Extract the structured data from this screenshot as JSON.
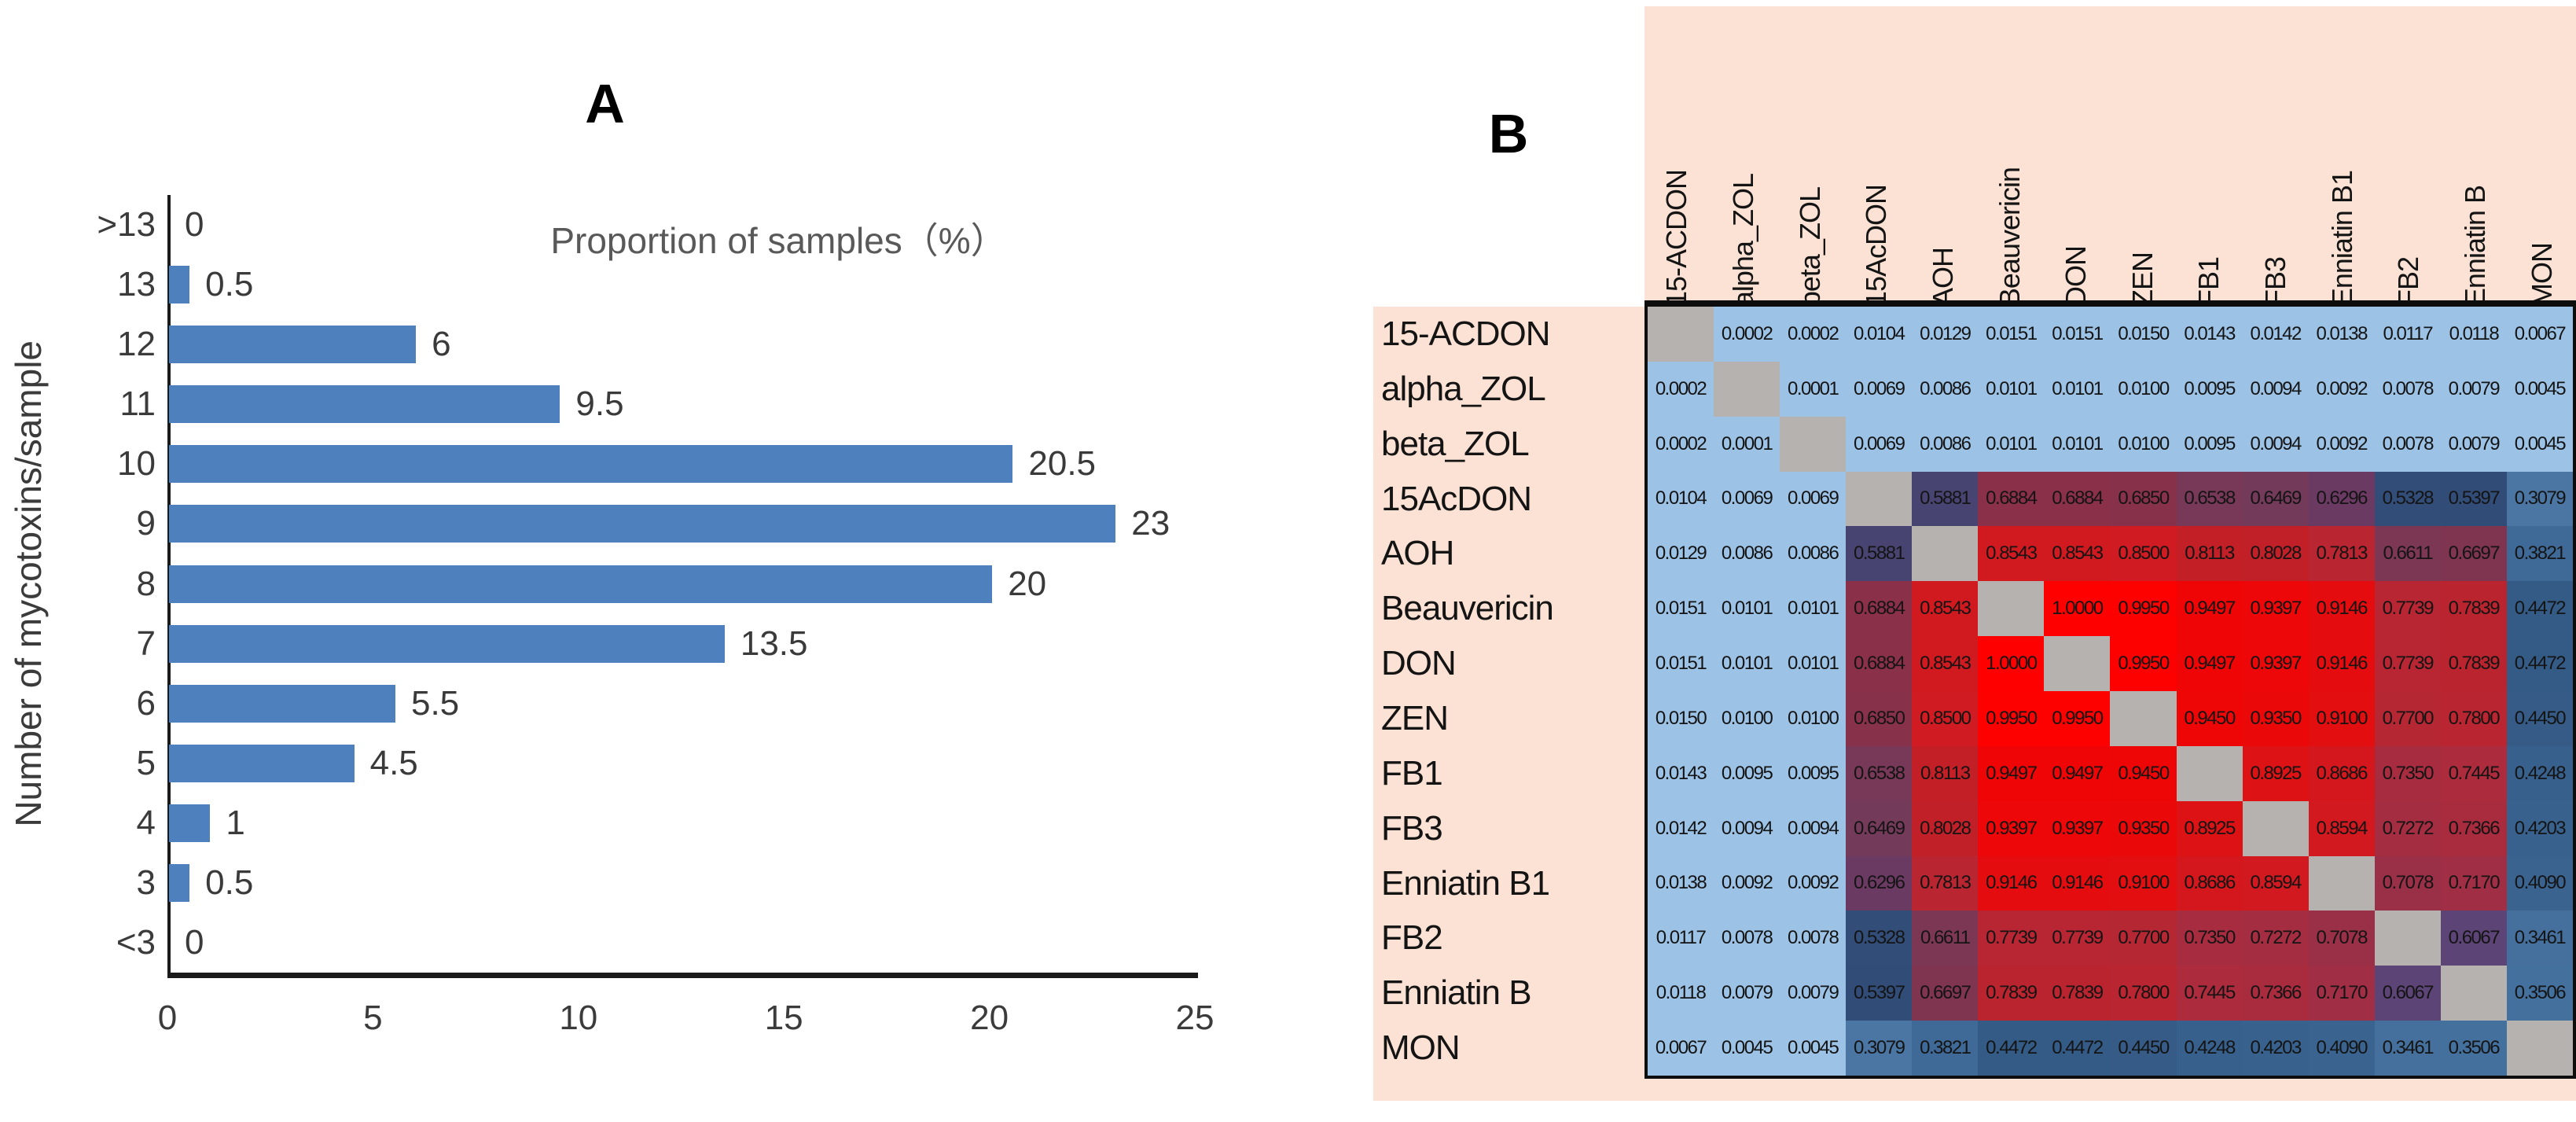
{
  "markers": {
    "a": "A",
    "b": "B"
  },
  "chart_data": [
    {
      "type": "bar",
      "orientation": "horizontal",
      "title": "Proportion of samples（%）",
      "xlabel": "",
      "ylabel": "Number of mycotoxins/sample",
      "categories": [
        ">13",
        "13",
        "12",
        "11",
        "10",
        "9",
        "8",
        "7",
        "6",
        "5",
        "4",
        "3",
        "<3"
      ],
      "values": [
        0,
        0.5,
        6,
        9.5,
        20.5,
        23,
        20,
        13.5,
        5.5,
        4.5,
        1,
        0.5,
        0
      ],
      "x_ticks": [
        0,
        5,
        10,
        15,
        20,
        25
      ],
      "xlim": [
        0,
        25
      ],
      "grid": false,
      "value_labels": true,
      "bar_color": "#4E80BE",
      "legend_position": "none"
    },
    {
      "type": "heatmap",
      "title": "",
      "labels": [
        "15-ACDON",
        "alpha_ZOL",
        "beta_ZOL",
        "15AcDON",
        "AOH",
        "Beauvericin",
        "DON",
        "ZEN",
        "FB1",
        "FB3",
        "Enniatin B1",
        "FB2",
        "Enniatin B",
        "MON"
      ],
      "matrix": [
        [
          null,
          0.0002,
          0.0002,
          0.0104,
          0.0129,
          0.0151,
          0.0151,
          0.015,
          0.0143,
          0.0142,
          0.0138,
          0.0117,
          0.0118,
          0.0067
        ],
        [
          0.0002,
          null,
          0.0001,
          0.0069,
          0.0086,
          0.0101,
          0.0101,
          0.01,
          0.0095,
          0.0094,
          0.0092,
          0.0078,
          0.0079,
          0.0045
        ],
        [
          0.0002,
          0.0001,
          null,
          0.0069,
          0.0086,
          0.0101,
          0.0101,
          0.01,
          0.0095,
          0.0094,
          0.0092,
          0.0078,
          0.0079,
          0.0045
        ],
        [
          0.0104,
          0.0069,
          0.0069,
          null,
          0.5881,
          0.6884,
          0.6884,
          0.685,
          0.6538,
          0.6469,
          0.6296,
          0.5328,
          0.5397,
          0.3079
        ],
        [
          0.0129,
          0.0086,
          0.0086,
          0.5881,
          null,
          0.8543,
          0.8543,
          0.85,
          0.8113,
          0.8028,
          0.7813,
          0.6611,
          0.6697,
          0.3821
        ],
        [
          0.0151,
          0.0101,
          0.0101,
          0.6884,
          0.8543,
          null,
          1.0,
          0.995,
          0.9497,
          0.9397,
          0.9146,
          0.7739,
          0.7839,
          0.4472
        ],
        [
          0.0151,
          0.0101,
          0.0101,
          0.6884,
          0.8543,
          1.0,
          null,
          0.995,
          0.9497,
          0.9397,
          0.9146,
          0.7739,
          0.7839,
          0.4472
        ],
        [
          0.015,
          0.01,
          0.01,
          0.685,
          0.85,
          0.995,
          0.995,
          null,
          0.945,
          0.935,
          0.91,
          0.77,
          0.78,
          0.445
        ],
        [
          0.0143,
          0.0095,
          0.0095,
          0.6538,
          0.8113,
          0.9497,
          0.9497,
          0.945,
          null,
          0.8925,
          0.8686,
          0.735,
          0.7445,
          0.4248
        ],
        [
          0.0142,
          0.0094,
          0.0094,
          0.6469,
          0.8028,
          0.9397,
          0.9397,
          0.935,
          0.8925,
          null,
          0.8594,
          0.7272,
          0.7366,
          0.4203
        ],
        [
          0.0138,
          0.0092,
          0.0092,
          0.6296,
          0.7813,
          0.9146,
          0.9146,
          0.91,
          0.8686,
          0.8594,
          null,
          0.7078,
          0.717,
          0.409
        ],
        [
          0.0117,
          0.0078,
          0.0078,
          0.5328,
          0.6611,
          0.7739,
          0.7739,
          0.77,
          0.735,
          0.7272,
          0.7078,
          null,
          0.6067,
          0.3461
        ],
        [
          0.0118,
          0.0079,
          0.0079,
          0.5397,
          0.6697,
          0.7839,
          0.7839,
          0.78,
          0.7445,
          0.7366,
          0.717,
          0.6067,
          null,
          0.3506
        ],
        [
          0.0067,
          0.0045,
          0.0045,
          0.3079,
          0.3821,
          0.4472,
          0.4472,
          0.445,
          0.4248,
          0.4203,
          0.409,
          0.3461,
          0.3506,
          null
        ]
      ],
      "value_format_decimals": 4,
      "background_color": "#FBE2D4",
      "diagonal_color": "#B5B2B0",
      "cell_text_color": "#141414",
      "color_stops": [
        [
          0.0,
          "#9CC2E6"
        ],
        [
          0.016,
          "#9CC2E6"
        ],
        [
          0.3,
          "#4C76A3"
        ],
        [
          0.35,
          "#44709E"
        ],
        [
          0.41,
          "#3A6390"
        ],
        [
          0.45,
          "#345A85"
        ],
        [
          0.5,
          "#30527D"
        ],
        [
          0.54,
          "#314C77"
        ],
        [
          0.588,
          "#474472"
        ],
        [
          0.607,
          "#5C4476"
        ],
        [
          0.63,
          "#6B3A62"
        ],
        [
          0.65,
          "#753A59"
        ],
        [
          0.67,
          "#7F3450"
        ],
        [
          0.69,
          "#8B3048"
        ],
        [
          0.71,
          "#9C3047"
        ],
        [
          0.73,
          "#A62C40"
        ],
        [
          0.75,
          "#AE2A3A"
        ],
        [
          0.78,
          "#B92530"
        ],
        [
          0.81,
          "#C31F26"
        ],
        [
          0.855,
          "#D01A20"
        ],
        [
          0.89,
          "#DB1315"
        ],
        [
          0.92,
          "#E60B0D"
        ],
        [
          0.95,
          "#F00506"
        ],
        [
          0.995,
          "#FD0101"
        ],
        [
          1.0,
          "#FF0000"
        ]
      ]
    }
  ]
}
